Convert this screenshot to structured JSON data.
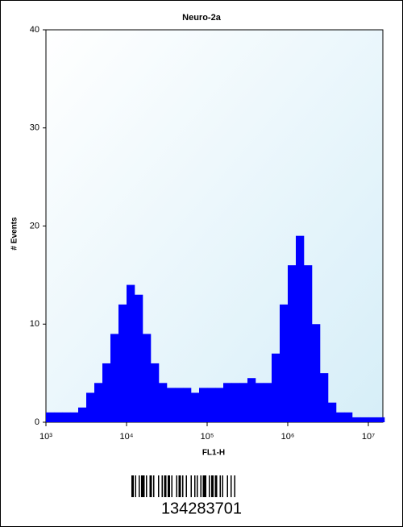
{
  "chart_data": {
    "type": "histogram",
    "title": "Neuro-2a",
    "x_label": "FL1-H",
    "y_label": "# Events",
    "log_x": true,
    "color": "#0000ff",
    "bins": [
      1000,
      1259,
      1585,
      1995,
      2512,
      3162,
      3981,
      5012,
      6310,
      7943,
      10000,
      12589,
      15849,
      19953,
      25119,
      31623,
      39811,
      50119,
      63096,
      79433,
      100000,
      125893,
      158489,
      199526,
      251189,
      316228,
      398107,
      501187,
      630957,
      794328,
      1000000,
      1258925,
      1584893,
      1995262,
      2511886,
      3162278,
      3981072,
      5011872,
      6309573,
      7943282,
      10000000,
      12589254,
      15848932
    ],
    "values": [
      1,
      1,
      1,
      1,
      1.5,
      3,
      4,
      6,
      9,
      12,
      14,
      13,
      9,
      6,
      4,
      3.5,
      3.5,
      3.5,
      3,
      3.5,
      3.5,
      3.5,
      4,
      4,
      4,
      4.5,
      4,
      4,
      7,
      12,
      16,
      19,
      16,
      10,
      5,
      2,
      1,
      1,
      0.5,
      0.5,
      0.5,
      0.5
    ],
    "xlim": [
      1000,
      15848932
    ],
    "xticks": [
      {
        "value": 1000,
        "label": "10³"
      },
      {
        "value": 10000,
        "label": "10⁴"
      },
      {
        "value": 100000,
        "label": "10⁵"
      },
      {
        "value": 1000000,
        "label": "10⁶"
      },
      {
        "value": 10000000,
        "label": "10⁷"
      }
    ],
    "ylim": [
      0,
      40
    ],
    "yticks": [
      0,
      10,
      20,
      30,
      40
    ]
  },
  "barcode_number": "134283701"
}
